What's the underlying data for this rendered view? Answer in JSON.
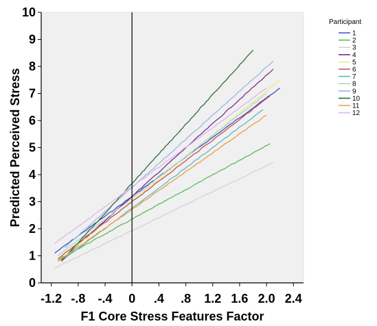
{
  "chart_data": {
    "type": "line",
    "title": "",
    "xlabel": "F1 Core Stress Features Factor",
    "ylabel": "Predicted Perceived Stress",
    "xlim": [
      -1.35,
      2.55
    ],
    "ylim": [
      0,
      10
    ],
    "x_ticks": [
      "-1.2",
      "-.8",
      "-.4",
      "0",
      ".4",
      ".8",
      "1.2",
      "1.6",
      "2.0",
      "2.4"
    ],
    "x_tick_values": [
      -1.2,
      -0.8,
      -0.4,
      0,
      0.4,
      0.8,
      1.2,
      1.6,
      2.0,
      2.4
    ],
    "y_ticks": [
      "0",
      "1",
      "2",
      "3",
      "4",
      "5",
      "6",
      "7",
      "8",
      "9",
      "10"
    ],
    "y_tick_values": [
      0,
      1,
      2,
      3,
      4,
      5,
      6,
      7,
      8,
      9,
      10
    ],
    "reference_line_x": 0,
    "grid": false,
    "background": "#f0f0f0",
    "legend": {
      "title": "Participant",
      "position": "top-right"
    },
    "series": [
      {
        "name": "1",
        "color": "#3b4fc4",
        "x": [
          -1.15,
          2.2
        ],
        "y": [
          1.1,
          7.2
        ]
      },
      {
        "name": "2",
        "color": "#5cb85c",
        "x": [
          -1.1,
          2.05
        ],
        "y": [
          0.85,
          5.15
        ]
      },
      {
        "name": "3",
        "color": "#d3d3d3",
        "x": [
          -1.15,
          2.1
        ],
        "y": [
          0.55,
          4.45
        ]
      },
      {
        "name": "4",
        "color": "#7b2d8e",
        "x": [
          -1.05,
          2.1
        ],
        "y": [
          0.85,
          7.9
        ]
      },
      {
        "name": "5",
        "color": "#f2e88c",
        "x": [
          -1.0,
          2.2
        ],
        "y": [
          1.0,
          7.5
        ]
      },
      {
        "name": "6",
        "color": "#c0504d",
        "x": [
          -1.1,
          2.05
        ],
        "y": [
          0.9,
          6.9
        ]
      },
      {
        "name": "7",
        "color": "#5fb6c8",
        "x": [
          -1.05,
          1.95
        ],
        "y": [
          0.8,
          6.4
        ]
      },
      {
        "name": "8",
        "color": "#a8d8c0",
        "x": [
          -1.1,
          2.0
        ],
        "y": [
          1.0,
          7.0
        ]
      },
      {
        "name": "9",
        "color": "#9db3e6",
        "x": [
          -1.0,
          2.1
        ],
        "y": [
          1.3,
          8.2
        ]
      },
      {
        "name": "10",
        "color": "#2e6b3a",
        "x": [
          -1.05,
          1.8
        ],
        "y": [
          0.8,
          8.6
        ]
      },
      {
        "name": "11",
        "color": "#e8a03c",
        "x": [
          -1.1,
          2.0
        ],
        "y": [
          0.8,
          6.2
        ]
      },
      {
        "name": "12",
        "color": "#d9b8ee",
        "x": [
          -1.15,
          2.0
        ],
        "y": [
          1.45,
          7.2
        ]
      }
    ]
  }
}
